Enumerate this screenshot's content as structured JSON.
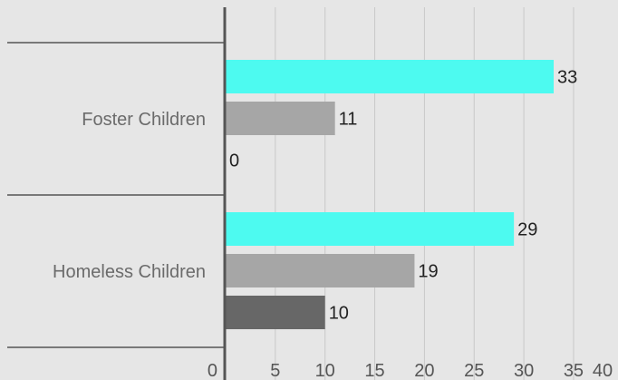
{
  "chart_data": {
    "type": "bar",
    "orientation": "horizontal",
    "categories": [
      "Foster Children",
      "Homeless Children"
    ],
    "series": [
      {
        "values": [
          33,
          29
        ],
        "color": "#4dfaf0"
      },
      {
        "values": [
          11,
          19
        ],
        "color": "#a6a6a6"
      },
      {
        "values": [
          0,
          10
        ],
        "color": "#676767"
      }
    ],
    "x_ticks": [
      "0",
      "5",
      "10",
      "15",
      "20",
      "25",
      "30",
      "35",
      "40"
    ],
    "xlim": [
      0,
      40
    ],
    "grid": true,
    "legend": false,
    "title": "",
    "xlabel": "",
    "ylabel": ""
  }
}
